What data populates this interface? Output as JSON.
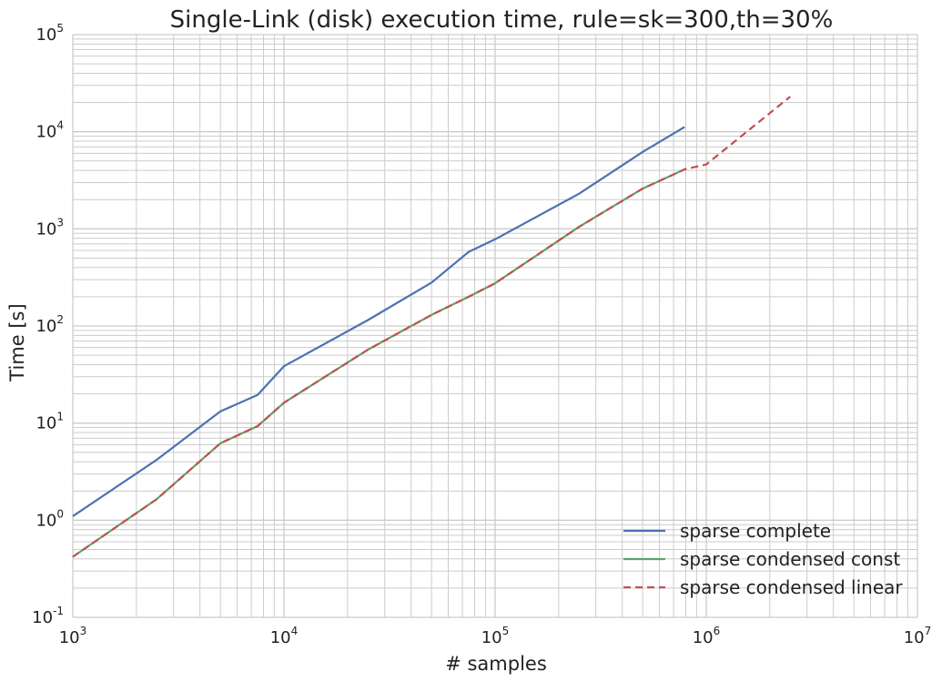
{
  "chart_data": {
    "type": "line",
    "title": "Single-Link (disk) execution time, rule=sk=300,th=30%",
    "xlabel": "# samples",
    "ylabel": "Time [s]",
    "xscale": "log",
    "yscale": "log",
    "xlim": [
      1000,
      10000000
    ],
    "ylim": [
      0.1,
      100000
    ],
    "grid": true,
    "legend_position": "bottom-right",
    "x_ticks": [
      {
        "base": "10",
        "exp": "3"
      },
      {
        "base": "10",
        "exp": "4"
      },
      {
        "base": "10",
        "exp": "5"
      },
      {
        "base": "10",
        "exp": "6"
      },
      {
        "base": "10",
        "exp": "7"
      }
    ],
    "y_ticks": [
      {
        "base": "10",
        "exp": "-1"
      },
      {
        "base": "10",
        "exp": "0"
      },
      {
        "base": "10",
        "exp": "1"
      },
      {
        "base": "10",
        "exp": "2"
      },
      {
        "base": "10",
        "exp": "3"
      },
      {
        "base": "10",
        "exp": "4"
      },
      {
        "base": "10",
        "exp": "5"
      }
    ],
    "series": [
      {
        "name": "sparse complete",
        "color": "#4c72b0",
        "dash": "solid",
        "x": [
          1000,
          2500,
          5000,
          7500,
          10000,
          25000,
          50000,
          75000,
          100000,
          250000,
          500000,
          790000
        ],
        "y": [
          1.1,
          4.2,
          13.2,
          19.5,
          38.5,
          115,
          280,
          580,
          780,
          2300,
          6200,
          11200
        ]
      },
      {
        "name": "sparse condensed const",
        "color": "#55a868",
        "dash": "solid",
        "x": [
          1000,
          2500,
          5000,
          7500,
          10000,
          25000,
          50000,
          75000,
          100000,
          250000,
          500000,
          790000
        ],
        "y": [
          0.42,
          1.65,
          6.2,
          9.3,
          16.2,
          57,
          130,
          200,
          275,
          1050,
          2600,
          4100
        ]
      },
      {
        "name": "sparse condensed linear",
        "color": "#c44e52",
        "dash": "dashed",
        "x": [
          1000,
          2500,
          5000,
          7500,
          10000,
          25000,
          50000,
          75000,
          100000,
          250000,
          500000,
          790000,
          1000000,
          2500000
        ],
        "y": [
          0.42,
          1.65,
          6.2,
          9.3,
          16.2,
          57,
          130,
          200,
          275,
          1050,
          2600,
          4100,
          4600,
          23000
        ]
      }
    ]
  }
}
